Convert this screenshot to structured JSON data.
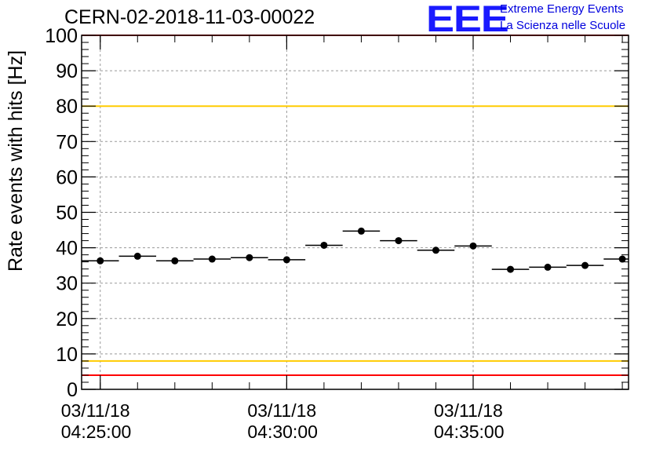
{
  "header": {
    "title": "CERN-02-2018-11-03-00022",
    "logo_mark": "EEE",
    "logo_line1": "Extreme Energy Events",
    "logo_line2": "La Scienza nelle Scuole"
  },
  "colors": {
    "red_limit": "#ff0000",
    "yellow_limit": "#ffcc00",
    "logo": "#0000dd",
    "grid": "#999999"
  },
  "chart_data": {
    "type": "scatter",
    "ylabel": "Rate events with hits [Hz]",
    "ylim": [
      0,
      100
    ],
    "yticks": [
      0,
      10,
      20,
      30,
      40,
      50,
      60,
      70,
      80,
      90,
      100
    ],
    "xlim": [
      "04:24:30",
      "04:39:10"
    ],
    "x_tick_labels": [
      {
        "time": "04:25:00",
        "date": "03/11/18"
      },
      {
        "time": "04:30:00",
        "date": "03/11/18"
      },
      {
        "time": "04:35:00",
        "date": "03/11/18"
      }
    ],
    "bin_width_seconds": 60,
    "reference_lines": [
      {
        "y": 80,
        "color": "yellow"
      },
      {
        "y": 8,
        "color": "yellow"
      },
      {
        "y": 100,
        "color": "red"
      },
      {
        "y": 4,
        "color": "red"
      }
    ],
    "grid": true,
    "series": [
      {
        "x": [
          "04:25:00",
          "04:26:00",
          "04:27:00",
          "04:28:00",
          "04:29:00",
          "04:30:00",
          "04:31:00",
          "04:32:00",
          "04:33:00",
          "04:34:00",
          "04:35:00",
          "04:36:00",
          "04:37:00",
          "04:38:00",
          "04:39:00"
        ],
        "values": [
          36.3,
          37.6,
          36.3,
          36.8,
          37.2,
          36.6,
          40.7,
          44.7,
          42.0,
          39.3,
          40.5,
          33.9,
          34.5,
          35.0,
          36.8
        ]
      }
    ]
  }
}
